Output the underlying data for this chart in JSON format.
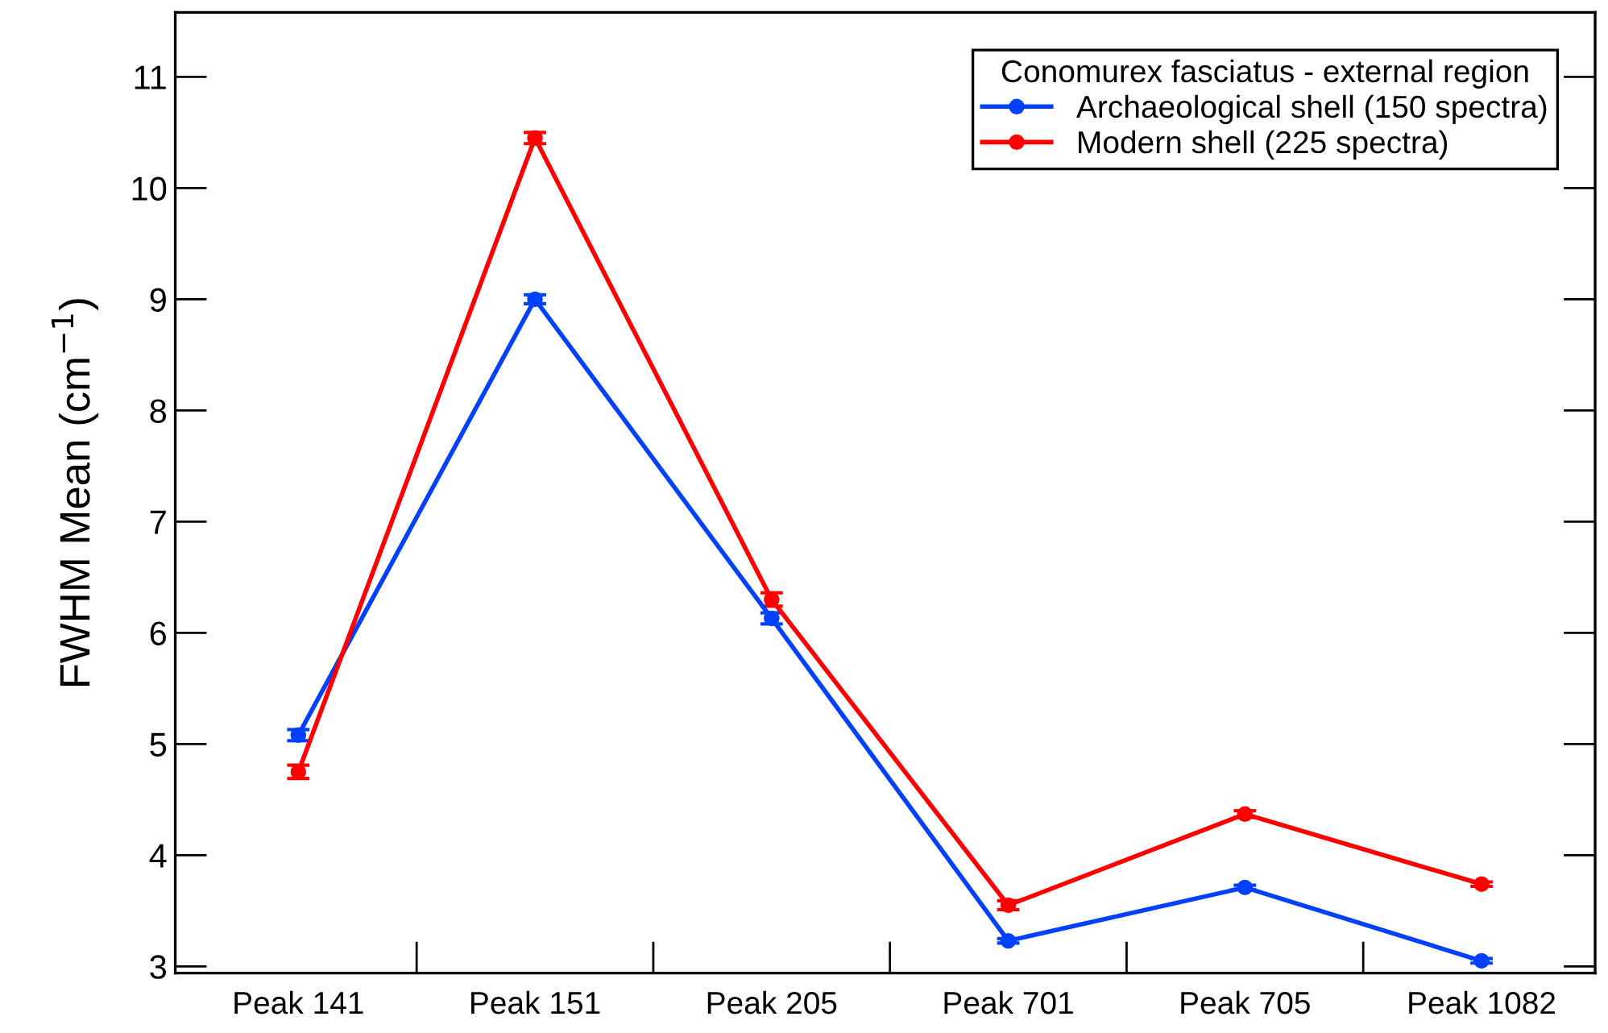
{
  "chart_data": {
    "type": "line",
    "ylabel": "FWHM Mean (cm$^{−1}$)",
    "legend_title": "Conomurex fasciatus - external region",
    "categories": [
      "Peak 141",
      "Peak 151",
      "Peak 205",
      "Peak 701",
      "Peak 705",
      "Peak 1082"
    ],
    "series": [
      {
        "name": "Archaeological shell (150 spectra)",
        "color": "#0040ff",
        "values": [
          5.08,
          9.0,
          6.13,
          3.23,
          3.71,
          3.05
        ],
        "errors": [
          0.05,
          0.04,
          0.05,
          0.02,
          0.02,
          0.02
        ]
      },
      {
        "name": "Modern shell (225 spectra)",
        "color": "#ff0000",
        "values": [
          4.75,
          10.45,
          6.3,
          3.55,
          4.37,
          3.74
        ],
        "errors": [
          0.06,
          0.05,
          0.06,
          0.04,
          0.03,
          0.02
        ]
      }
    ],
    "ylim": [
      2.94,
      11.58
    ],
    "yticks": [
      3,
      4,
      5,
      6,
      7,
      8,
      9,
      10,
      11
    ],
    "grid": false,
    "legend": "top right",
    "marker": "circle",
    "line_style": "solid"
  }
}
